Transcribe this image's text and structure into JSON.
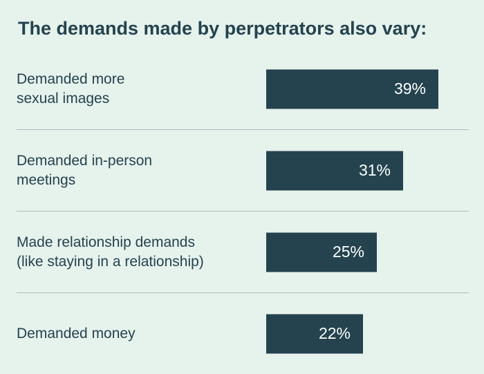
{
  "chart_data": {
    "type": "bar",
    "orientation": "horizontal",
    "title": "The demands made by perpetrators also vary:",
    "categories": [
      "Demanded more\nsexual images",
      "Demanded in-person\nmeetings",
      "Made relationship demands\n(like staying in a relationship)",
      "Demanded money"
    ],
    "values": [
      39,
      31,
      25,
      22
    ],
    "value_labels": [
      "39%",
      "31%",
      "25%",
      "22%"
    ],
    "unit": "%",
    "xlim": [
      0,
      39
    ],
    "grid": false,
    "colors": {
      "bar": "#24434f",
      "background": "#e6f2ec",
      "divider": "#a9bdbf",
      "value_text": "#ffffff"
    }
  }
}
